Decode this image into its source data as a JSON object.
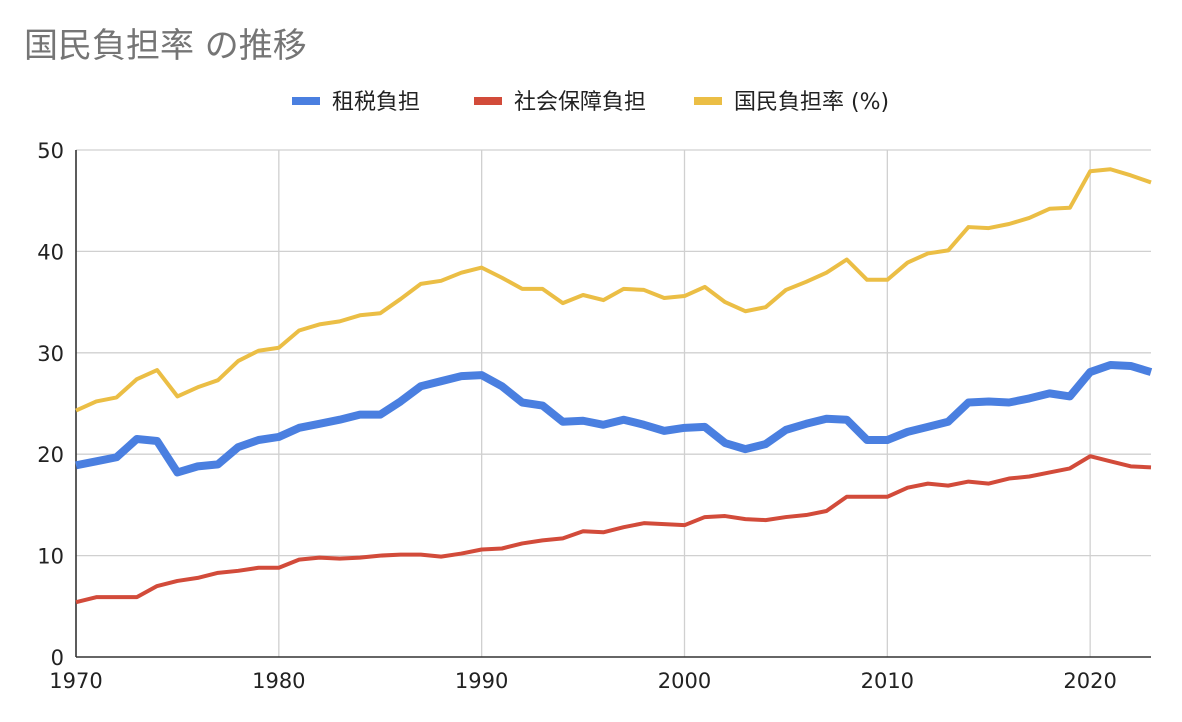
{
  "chart_data": {
    "type": "line",
    "title": "国民負担率 の推移",
    "xlabel": "",
    "ylabel": "",
    "xlim": [
      1970,
      2023
    ],
    "ylim": [
      0,
      50
    ],
    "x_ticks": [
      "1970",
      "1980",
      "1990",
      "2000",
      "2010",
      "2020"
    ],
    "y_ticks": [
      "0",
      "10",
      "20",
      "30",
      "40",
      "50"
    ],
    "grid": true,
    "legend_position": "top",
    "x": [
      1970,
      1971,
      1972,
      1973,
      1974,
      1975,
      1976,
      1977,
      1978,
      1979,
      1980,
      1981,
      1982,
      1983,
      1984,
      1985,
      1986,
      1987,
      1988,
      1989,
      1990,
      1991,
      1992,
      1993,
      1994,
      1995,
      1996,
      1997,
      1998,
      1999,
      2000,
      2001,
      2002,
      2003,
      2004,
      2005,
      2006,
      2007,
      2008,
      2009,
      2010,
      2011,
      2012,
      2013,
      2014,
      2015,
      2016,
      2017,
      2018,
      2019,
      2020,
      2021,
      2022,
      2023
    ],
    "series": [
      {
        "name": "租税負担",
        "color": "#4A7FE0",
        "values": [
          18.9,
          19.3,
          19.7,
          21.5,
          21.3,
          18.2,
          18.8,
          19.0,
          20.7,
          21.4,
          21.7,
          22.6,
          23.0,
          23.4,
          23.9,
          23.9,
          25.2,
          26.7,
          27.2,
          27.7,
          27.8,
          26.7,
          25.1,
          24.8,
          23.2,
          23.3,
          22.9,
          23.4,
          22.9,
          22.3,
          22.6,
          22.7,
          21.1,
          20.5,
          21.0,
          22.4,
          23.0,
          23.5,
          23.4,
          21.4,
          21.4,
          22.2,
          22.7,
          23.2,
          25.1,
          25.2,
          25.1,
          25.5,
          26.0,
          25.7,
          28.1,
          28.8,
          28.7,
          28.1
        ]
      },
      {
        "name": "社会保障負担",
        "color": "#D24B3A",
        "values": [
          5.4,
          5.9,
          5.9,
          5.9,
          7.0,
          7.5,
          7.8,
          8.3,
          8.5,
          8.8,
          8.8,
          9.6,
          9.8,
          9.7,
          9.8,
          10.0,
          10.1,
          10.1,
          9.9,
          10.2,
          10.6,
          10.7,
          11.2,
          11.5,
          11.7,
          12.4,
          12.3,
          12.8,
          13.2,
          13.1,
          13.0,
          13.8,
          13.9,
          13.6,
          13.5,
          13.8,
          14.0,
          14.4,
          15.8,
          15.8,
          15.8,
          16.7,
          17.1,
          16.9,
          17.3,
          17.1,
          17.6,
          17.8,
          18.2,
          18.6,
          19.8,
          19.3,
          18.8,
          18.7
        ]
      },
      {
        "name": "国民負担率 (%)",
        "color": "#EBBE45",
        "values": [
          24.3,
          25.2,
          25.6,
          27.4,
          28.3,
          25.7,
          26.6,
          27.3,
          29.2,
          30.2,
          30.5,
          32.2,
          32.8,
          33.1,
          33.7,
          33.9,
          35.3,
          36.8,
          37.1,
          37.9,
          38.4,
          37.4,
          36.3,
          36.3,
          34.9,
          35.7,
          35.2,
          36.3,
          36.2,
          35.4,
          35.6,
          36.5,
          35.0,
          34.1,
          34.5,
          36.2,
          37.0,
          37.9,
          39.2,
          37.2,
          37.2,
          38.9,
          39.8,
          40.1,
          42.4,
          42.3,
          42.7,
          43.3,
          44.2,
          44.3,
          47.9,
          48.1,
          47.5,
          46.8
        ]
      }
    ]
  }
}
